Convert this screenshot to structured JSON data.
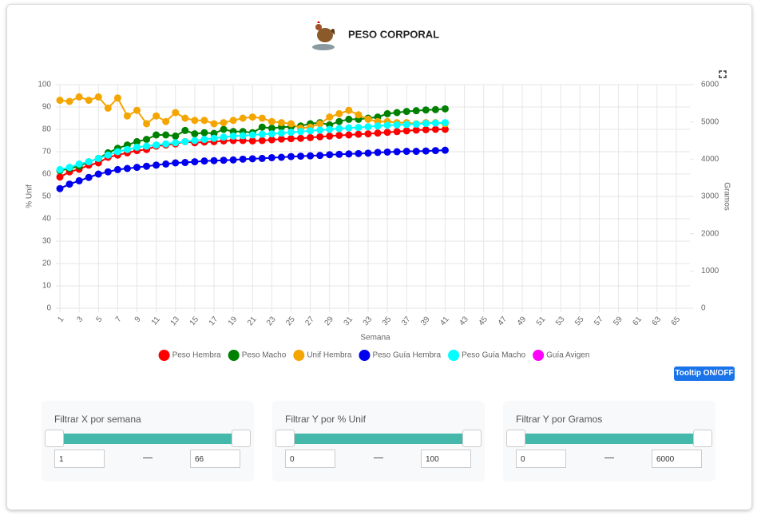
{
  "chart_data": {
    "type": "line",
    "title": "PESO CORPORAL",
    "xlabel": "Semana",
    "ylabel": "% Unif",
    "y2label": "Gramos",
    "x": [
      1,
      2,
      3,
      4,
      5,
      6,
      7,
      8,
      9,
      10,
      11,
      12,
      13,
      14,
      15,
      16,
      17,
      18,
      19,
      20,
      21,
      22,
      23,
      24,
      25,
      26,
      27,
      28,
      29,
      30,
      31,
      32,
      33,
      34,
      35,
      36,
      37,
      38,
      39,
      40,
      41
    ],
    "xlim": [
      1,
      66
    ],
    "xticks": [
      1,
      3,
      5,
      7,
      9,
      11,
      13,
      15,
      17,
      19,
      21,
      23,
      25,
      27,
      29,
      31,
      33,
      35,
      37,
      39,
      41,
      43,
      45,
      47,
      49,
      51,
      53,
      55,
      57,
      59,
      61,
      63,
      65
    ],
    "ylim": [
      0,
      100
    ],
    "yticks": [
      0,
      10,
      20,
      30,
      40,
      50,
      60,
      70,
      80,
      90,
      100
    ],
    "y2lim": [
      0,
      6000
    ],
    "y2ticks": [
      0,
      1000,
      2000,
      3000,
      4000,
      5000,
      6000
    ],
    "grid": true,
    "legend": "bottom",
    "series": [
      {
        "name": "Peso Hembra",
        "color": "#ff0000",
        "axis": "y2",
        "values": [
          3520,
          3660,
          3730,
          3840,
          3900,
          4050,
          4110,
          4170,
          4230,
          4260,
          4350,
          4380,
          4410,
          4470,
          4440,
          4460,
          4470,
          4490,
          4500,
          4500,
          4490,
          4500,
          4520,
          4540,
          4550,
          4560,
          4580,
          4600,
          4620,
          4640,
          4650,
          4670,
          4680,
          4700,
          4720,
          4740,
          4760,
          4780,
          4790,
          4800,
          4800
        ]
      },
      {
        "name": "Peso Macho",
        "color": "#008000",
        "axis": "y2",
        "values": [
          3690,
          3750,
          3810,
          3930,
          4020,
          4170,
          4290,
          4380,
          4470,
          4530,
          4650,
          4650,
          4620,
          4770,
          4680,
          4710,
          4690,
          4800,
          4740,
          4740,
          4710,
          4860,
          4830,
          4860,
          4870,
          4890,
          4950,
          4980,
          4920,
          5010,
          5070,
          5070,
          5100,
          5130,
          5220,
          5250,
          5280,
          5300,
          5320,
          5330,
          5350
        ]
      },
      {
        "name": "Unif Hembra",
        "color": "#f5a500",
        "axis": "y",
        "values": [
          93,
          92.5,
          94.5,
          93,
          94.5,
          89.5,
          94,
          86,
          88.5,
          82.5,
          86,
          83.5,
          87.5,
          85,
          84,
          84,
          82.5,
          83,
          84,
          85,
          85.5,
          85,
          83.5,
          83,
          82.5,
          80.5,
          81,
          82.5,
          85.5,
          87,
          88.5,
          86.5,
          84.5,
          83.5,
          83.5,
          83,
          83,
          82.5,
          83,
          83,
          82.5
        ]
      },
      {
        "name": "Peso Guía Hembra",
        "color": "#0000ee",
        "axis": "y2",
        "values": [
          3210,
          3330,
          3420,
          3510,
          3600,
          3660,
          3720,
          3750,
          3780,
          3810,
          3840,
          3870,
          3900,
          3910,
          3930,
          3950,
          3960,
          3970,
          3980,
          4000,
          4010,
          4020,
          4040,
          4050,
          4070,
          4080,
          4090,
          4100,
          4120,
          4130,
          4140,
          4150,
          4160,
          4180,
          4190,
          4200,
          4210,
          4210,
          4220,
          4230,
          4240
        ]
      },
      {
        "name": "Peso Guía Macho",
        "color": "#00ffff",
        "axis": "y2",
        "values": [
          3720,
          3780,
          3870,
          3930,
          4020,
          4110,
          4200,
          4260,
          4320,
          4350,
          4380,
          4410,
          4440,
          4470,
          4500,
          4530,
          4560,
          4590,
          4620,
          4630,
          4650,
          4670,
          4680,
          4700,
          4720,
          4740,
          4760,
          4780,
          4800,
          4820,
          4840,
          4850,
          4870,
          4890,
          4910,
          4920,
          4930,
          4940,
          4960,
          4970,
          4980
        ]
      },
      {
        "name": "Guía Avigen",
        "color": "#ff00ff",
        "axis": "y2",
        "values": [
          null,
          null,
          null,
          null,
          null,
          null,
          null,
          null,
          null,
          null,
          null,
          null,
          null,
          null,
          null,
          null,
          null,
          null,
          null,
          null,
          null,
          null,
          null,
          null,
          null,
          null,
          null,
          null,
          null,
          null,
          null,
          null,
          null,
          null,
          null,
          null,
          null,
          null,
          null,
          null,
          null
        ]
      }
    ]
  },
  "tooltip_button": "Tooltip ON/OFF",
  "filters": [
    {
      "label": "Filtrar X por semana",
      "min": 1,
      "max": 66
    },
    {
      "label": "Filtrar Y por % Unif",
      "min": 0,
      "max": 100
    },
    {
      "label": "Filtrar Y por Gramos",
      "min": 0,
      "max": 6000
    }
  ]
}
